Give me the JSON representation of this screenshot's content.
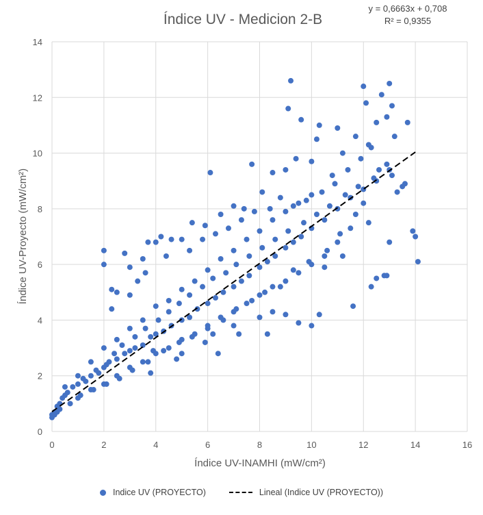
{
  "chart_data": {
    "type": "scatter",
    "title": "Índice UV - Medicion 2-B",
    "equation": "y = 0,6663x + 0,708",
    "r_squared": "R² = 0,9355",
    "xlabel": "Índice UV-INAMHI (mW/cm²)",
    "ylabel": "Índice UV-Proyecto (mW/cm²)",
    "xlim": [
      0,
      16
    ],
    "ylim": [
      0,
      14
    ],
    "x_ticks": [
      "0",
      "2",
      "4",
      "6",
      "8",
      "10",
      "12",
      "14",
      "16"
    ],
    "y_ticks": [
      "0",
      "2",
      "4",
      "6",
      "8",
      "10",
      "12",
      "14"
    ],
    "grid": "vertical and horizontal",
    "legend_position": "bottom",
    "series": [
      {
        "name": "Indice UV (PROYECTO)",
        "color": "#4472c4",
        "points": [
          [
            0.0,
            0.6
          ],
          [
            0.1,
            0.7
          ],
          [
            0.2,
            0.9
          ],
          [
            0.3,
            1.0
          ],
          [
            0.4,
            1.2
          ],
          [
            0.5,
            1.3
          ],
          [
            0.6,
            1.4
          ],
          [
            0.8,
            1.6
          ],
          [
            1.0,
            1.7
          ],
          [
            1.2,
            1.9
          ],
          [
            1.5,
            2.0
          ],
          [
            1.8,
            2.1
          ],
          [
            2.0,
            2.3
          ],
          [
            2.2,
            2.5
          ],
          [
            2.5,
            2.6
          ],
          [
            2.8,
            2.8
          ],
          [
            3.0,
            2.9
          ],
          [
            3.2,
            3.0
          ],
          [
            3.5,
            3.1
          ],
          [
            3.8,
            3.4
          ],
          [
            4.0,
            3.5
          ],
          [
            4.3,
            3.6
          ],
          [
            4.6,
            3.8
          ],
          [
            5.0,
            4.0
          ],
          [
            5.3,
            4.1
          ],
          [
            5.6,
            4.4
          ],
          [
            6.0,
            4.6
          ],
          [
            6.3,
            4.8
          ],
          [
            6.6,
            5.0
          ],
          [
            7.0,
            5.2
          ],
          [
            7.3,
            5.4
          ],
          [
            7.6,
            5.6
          ],
          [
            8.0,
            5.9
          ],
          [
            8.3,
            6.1
          ],
          [
            8.6,
            6.3
          ],
          [
            9.0,
            6.6
          ],
          [
            9.3,
            6.8
          ],
          [
            9.6,
            7.0
          ],
          [
            10.0,
            7.3
          ],
          [
            10.5,
            7.6
          ],
          [
            11.0,
            8.0
          ],
          [
            11.5,
            8.4
          ],
          [
            12.0,
            8.7
          ],
          [
            12.5,
            9.0
          ],
          [
            13.0,
            9.4
          ],
          [
            0.5,
            1.6
          ],
          [
            1.0,
            2.0
          ],
          [
            1.5,
            2.5
          ],
          [
            2.0,
            3.0
          ],
          [
            2.5,
            3.3
          ],
          [
            3.0,
            3.7
          ],
          [
            3.5,
            4.0
          ],
          [
            4.0,
            4.5
          ],
          [
            4.5,
            4.7
          ],
          [
            5.0,
            5.1
          ],
          [
            5.5,
            5.4
          ],
          [
            6.0,
            5.8
          ],
          [
            6.5,
            6.2
          ],
          [
            7.0,
            6.5
          ],
          [
            7.5,
            6.9
          ],
          [
            8.0,
            7.2
          ],
          [
            8.5,
            7.6
          ],
          [
            9.0,
            7.9
          ],
          [
            9.5,
            8.2
          ],
          [
            10.0,
            8.5
          ],
          [
            1.0,
            1.2
          ],
          [
            1.5,
            1.5
          ],
          [
            2.0,
            1.7
          ],
          [
            2.5,
            2.0
          ],
          [
            3.0,
            2.3
          ],
          [
            3.5,
            2.5
          ],
          [
            4.0,
            2.8
          ],
          [
            4.5,
            3.0
          ],
          [
            5.0,
            3.3
          ],
          [
            5.5,
            3.5
          ],
          [
            6.0,
            3.8
          ],
          [
            6.5,
            4.1
          ],
          [
            7.0,
            4.3
          ],
          [
            7.5,
            4.6
          ],
          [
            8.0,
            4.9
          ],
          [
            8.5,
            5.2
          ],
          [
            9.0,
            5.4
          ],
          [
            9.5,
            5.7
          ],
          [
            10.0,
            6.0
          ],
          [
            10.5,
            6.3
          ],
          [
            2.0,
            6.0
          ],
          [
            2.0,
            6.5
          ],
          [
            2.3,
            5.1
          ],
          [
            2.8,
            6.4
          ],
          [
            3.0,
            5.9
          ],
          [
            3.5,
            6.2
          ],
          [
            3.7,
            6.8
          ],
          [
            4.0,
            6.8
          ],
          [
            4.2,
            7.0
          ],
          [
            4.6,
            6.9
          ],
          [
            5.0,
            6.9
          ],
          [
            5.4,
            7.5
          ],
          [
            5.9,
            7.4
          ],
          [
            6.1,
            9.3
          ],
          [
            6.5,
            7.8
          ],
          [
            7.0,
            8.1
          ],
          [
            7.4,
            8.0
          ],
          [
            7.7,
            9.6
          ],
          [
            8.1,
            8.6
          ],
          [
            8.5,
            9.3
          ],
          [
            9.0,
            9.4
          ],
          [
            9.1,
            11.6
          ],
          [
            9.2,
            12.6
          ],
          [
            9.4,
            9.8
          ],
          [
            9.6,
            11.2
          ],
          [
            10.0,
            9.7
          ],
          [
            10.2,
            10.5
          ],
          [
            10.3,
            11.0
          ],
          [
            10.8,
            9.2
          ],
          [
            11.0,
            10.9
          ],
          [
            11.2,
            10.0
          ],
          [
            11.7,
            10.6
          ],
          [
            12.0,
            12.4
          ],
          [
            12.1,
            11.8
          ],
          [
            12.3,
            10.2
          ],
          [
            12.5,
            11.1
          ],
          [
            12.7,
            12.1
          ],
          [
            12.9,
            11.3
          ],
          [
            13.0,
            12.5
          ],
          [
            13.1,
            11.7
          ],
          [
            13.2,
            10.6
          ],
          [
            13.5,
            8.8
          ],
          [
            13.6,
            8.9
          ],
          [
            13.7,
            11.1
          ],
          [
            13.9,
            7.2
          ],
          [
            14.0,
            7.0
          ],
          [
            14.1,
            6.1
          ],
          [
            13.0,
            6.8
          ],
          [
            12.9,
            5.6
          ],
          [
            12.8,
            5.6
          ],
          [
            12.3,
            5.2
          ],
          [
            12.5,
            5.5
          ],
          [
            11.6,
            4.5
          ],
          [
            11.2,
            6.3
          ],
          [
            10.5,
            5.9
          ],
          [
            10.3,
            4.2
          ],
          [
            10.0,
            3.8
          ],
          [
            9.5,
            3.9
          ],
          [
            9.0,
            4.2
          ],
          [
            8.5,
            4.3
          ],
          [
            8.3,
            3.5
          ],
          [
            8.0,
            4.1
          ],
          [
            7.2,
            3.5
          ],
          [
            7.0,
            3.8
          ],
          [
            6.4,
            2.8
          ],
          [
            6.2,
            3.5
          ],
          [
            5.9,
            3.2
          ],
          [
            5.0,
            2.8
          ],
          [
            4.8,
            2.6
          ],
          [
            3.8,
            2.1
          ],
          [
            3.9,
            2.9
          ],
          [
            2.5,
            5.0
          ],
          [
            2.3,
            4.4
          ],
          [
            3.0,
            4.9
          ],
          [
            3.3,
            5.4
          ],
          [
            3.6,
            5.7
          ],
          [
            4.4,
            6.3
          ],
          [
            5.3,
            6.5
          ],
          [
            5.8,
            6.9
          ],
          [
            6.3,
            7.1
          ],
          [
            6.8,
            7.3
          ],
          [
            7.3,
            7.6
          ],
          [
            7.8,
            7.9
          ],
          [
            8.4,
            8.0
          ],
          [
            8.8,
            8.4
          ],
          [
            9.3,
            8.1
          ],
          [
            9.8,
            8.3
          ],
          [
            10.4,
            8.6
          ],
          [
            10.9,
            8.9
          ],
          [
            11.4,
            9.4
          ],
          [
            11.9,
            9.8
          ],
          [
            12.2,
            10.3
          ],
          [
            12.6,
            9.4
          ],
          [
            13.1,
            9.2
          ],
          [
            12.0,
            8.2
          ],
          [
            11.5,
            7.3
          ],
          [
            11.0,
            6.8
          ],
          [
            10.6,
            6.5
          ],
          [
            9.9,
            6.1
          ],
          [
            9.3,
            5.8
          ],
          [
            8.8,
            5.2
          ],
          [
            8.2,
            5.0
          ],
          [
            7.7,
            4.7
          ],
          [
            7.1,
            4.4
          ],
          [
            6.6,
            4.0
          ],
          [
            6.0,
            3.7
          ],
          [
            5.4,
            3.4
          ],
          [
            4.9,
            3.2
          ],
          [
            4.3,
            2.9
          ],
          [
            3.7,
            2.5
          ],
          [
            3.1,
            2.2
          ],
          [
            2.6,
            1.9
          ],
          [
            2.1,
            1.7
          ],
          [
            1.6,
            1.5
          ],
          [
            1.1,
            1.3
          ],
          [
            0.7,
            1.0
          ],
          [
            0.3,
            0.8
          ],
          [
            0.1,
            0.6
          ],
          [
            0.0,
            0.5
          ],
          [
            0.2,
            0.7
          ],
          [
            1.3,
            1.8
          ],
          [
            1.7,
            2.2
          ],
          [
            2.1,
            2.4
          ],
          [
            2.4,
            2.8
          ],
          [
            2.7,
            3.1
          ],
          [
            3.2,
            3.4
          ],
          [
            3.6,
            3.7
          ],
          [
            4.1,
            4.0
          ],
          [
            4.5,
            4.3
          ],
          [
            4.9,
            4.6
          ],
          [
            5.3,
            4.9
          ],
          [
            5.8,
            5.2
          ],
          [
            6.2,
            5.5
          ],
          [
            6.7,
            5.7
          ],
          [
            7.1,
            6.0
          ],
          [
            7.6,
            6.3
          ],
          [
            8.1,
            6.6
          ],
          [
            8.6,
            6.9
          ],
          [
            9.1,
            7.2
          ],
          [
            9.7,
            7.5
          ],
          [
            10.2,
            7.8
          ],
          [
            10.7,
            8.1
          ],
          [
            11.3,
            8.5
          ],
          [
            11.8,
            8.8
          ],
          [
            12.4,
            9.1
          ],
          [
            12.9,
            9.6
          ],
          [
            13.3,
            8.6
          ],
          [
            12.2,
            7.5
          ],
          [
            11.7,
            7.8
          ],
          [
            11.1,
            7.1
          ]
        ]
      }
    ],
    "trendline": {
      "name": "Lineal (Indice UV (PROYECTO))",
      "slope": 0.6663,
      "intercept": 0.708,
      "x_range": [
        0,
        14
      ],
      "color": "#000000",
      "style": "dashed"
    }
  }
}
